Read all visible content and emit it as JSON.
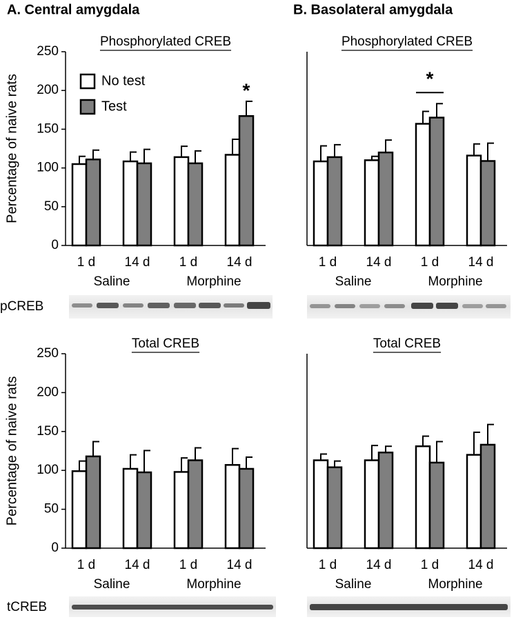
{
  "panels": [
    "A. Central amygdala",
    "B. Basolateral amygdala"
  ],
  "blots": [
    "pCREB",
    "tCREB"
  ],
  "chart_data": [
    {
      "type": "bar",
      "title": "Phosphorylated CREB",
      "ylabel": "Percentage of naive rats",
      "categories": [
        "1 d",
        "14 d",
        "1 d",
        "14 d"
      ],
      "groups": [
        "Saline",
        "Morphine"
      ],
      "series": [
        {
          "name": "No test",
          "color": "#ffffff",
          "values": [
            105,
            108.5,
            114,
            117
          ],
          "errors": [
            10,
            12,
            14,
            20
          ]
        },
        {
          "name": "Test",
          "color": "#7f7f7f",
          "values": [
            111,
            106,
            106,
            167
          ],
          "errors": [
            12,
            18,
            16,
            19
          ]
        }
      ],
      "ylim": [
        0,
        250
      ],
      "yticks": [
        0,
        50,
        100,
        150,
        200,
        250
      ],
      "legend": "upper left",
      "annotations": [
        "*"
      ]
    },
    {
      "type": "bar",
      "title": "Phosphorylated CREB",
      "categories": [
        "1 d",
        "14 d",
        "1 d",
        "14 d"
      ],
      "groups": [
        "Saline",
        "Morphine"
      ],
      "series": [
        {
          "color": "#ffffff",
          "values": [
            108.5,
            110,
            157,
            116
          ],
          "errors": [
            20,
            5,
            16,
            15
          ]
        },
        {
          "color": "#7f7f7f",
          "values": [
            114,
            120,
            165,
            109
          ],
          "errors": [
            16,
            16,
            18,
            23
          ]
        }
      ],
      "ylim": [
        0,
        250
      ],
      "annotations": [
        "*"
      ]
    },
    {
      "type": "bar",
      "title": "Total CREB",
      "ylabel": "Percentage of naive rats",
      "categories": [
        "1 d",
        "14 d",
        "1 d",
        "14 d"
      ],
      "groups": [
        "Saline",
        "Morphine"
      ],
      "series": [
        {
          "color": "#ffffff",
          "values": [
            99,
            102,
            98,
            107
          ],
          "errors": [
            13,
            18,
            18,
            21
          ]
        },
        {
          "color": "#7f7f7f",
          "values": [
            118,
            97.5,
            113,
            102
          ],
          "errors": [
            19,
            28,
            16,
            15
          ]
        }
      ],
      "ylim": [
        0,
        250
      ],
      "yticks": [
        0,
        50,
        100,
        150,
        200,
        250
      ]
    },
    {
      "type": "bar",
      "title": "Total CREB",
      "categories": [
        "1 d",
        "14 d",
        "1 d",
        "14 d"
      ],
      "groups": [
        "Saline",
        "Morphine"
      ],
      "series": [
        {
          "color": "#ffffff",
          "values": [
            113,
            113,
            131,
            120
          ],
          "errors": [
            8,
            19,
            13,
            29
          ]
        },
        {
          "color": "#7f7f7f",
          "values": [
            104,
            123,
            110,
            133
          ],
          "errors": [
            8,
            8,
            27,
            26
          ]
        }
      ],
      "ylim": [
        0,
        250
      ]
    }
  ]
}
